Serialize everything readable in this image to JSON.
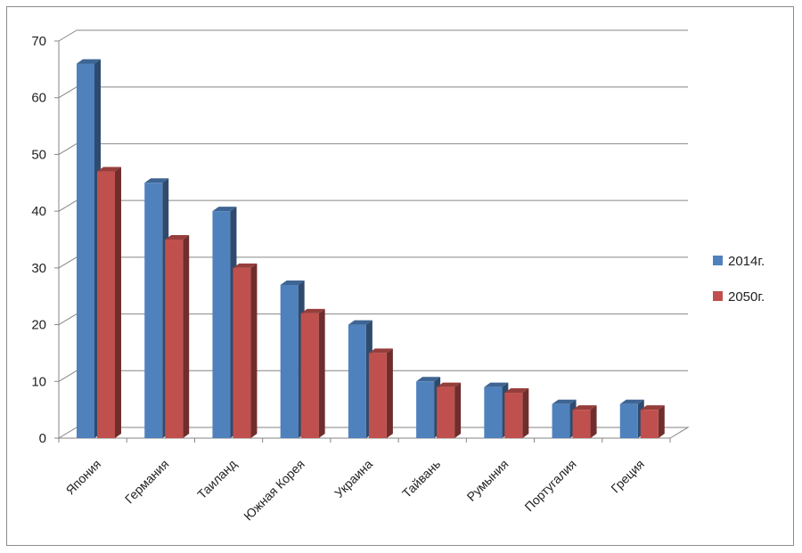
{
  "chart_data": {
    "type": "bar",
    "title": "",
    "xlabel": "",
    "ylabel": "",
    "ylim": [
      0,
      70
    ],
    "yticks": [
      0,
      10,
      20,
      30,
      40,
      50,
      60,
      70
    ],
    "grid": true,
    "legend_position": "right",
    "categories": [
      "Япония",
      "Германия",
      "Таиланд",
      "Южная Корея",
      "Украина",
      "Тайвань",
      "Румыния",
      "Португалия",
      "Греция"
    ],
    "series": [
      {
        "name": "2014г.",
        "color": "#4F81BD",
        "values": [
          66,
          45,
          40,
          27,
          20,
          10,
          9,
          6,
          6
        ]
      },
      {
        "name": "2050г.",
        "color": "#C0504D",
        "values": [
          47,
          35,
          30,
          22,
          15,
          9,
          8,
          5,
          5
        ]
      }
    ]
  }
}
